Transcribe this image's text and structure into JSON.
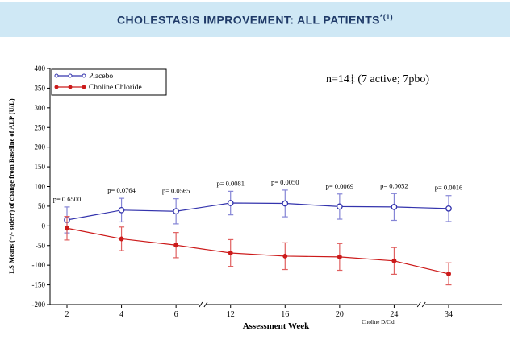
{
  "header": {
    "title": "CHOLESTASIS IMPROVEMENT: ALL PATIENTS",
    "superscript": "*(1)"
  },
  "chart_data": {
    "type": "line",
    "x_categories": [
      "2",
      "4",
      "6",
      "12",
      "16",
      "20",
      "24",
      "34"
    ],
    "series": [
      {
        "name": "Placebo",
        "color": "#3434ad",
        "error_color": "#8585d6",
        "marker": "open-circle",
        "values": [
          15,
          40,
          37,
          58,
          57,
          49,
          48,
          44
        ],
        "errors": [
          33,
          30,
          32,
          30,
          34,
          32,
          34,
          33
        ]
      },
      {
        "name": "Choline Chloride",
        "color": "#cc1a1a",
        "error_color": "#e06060",
        "marker": "filled-circle",
        "values": [
          -6,
          -33,
          -49,
          -69,
          -77,
          -79,
          -89,
          -122
        ],
        "errors": [
          30,
          30,
          32,
          34,
          34,
          34,
          34,
          28
        ]
      }
    ],
    "p_values": [
      "p= 0.6500",
      "p= 0.0764",
      "p= 0.0565",
      "p= 0.0081",
      "p= 0.0050",
      "p= 0.0069",
      "p= 0.0052",
      "p= 0.0016"
    ],
    "annotation": "n=14‡ (7 active; 7pbo)",
    "footnote": "Choline D/C'd",
    "xlabel": "Assessment Week",
    "ylabel": "LS Means (+/- stderr) of change from Baseline of ALP (U/L)",
    "ylim": [
      -200,
      400
    ],
    "ytick_step": 50,
    "axis_breaks_after_index": [
      2,
      6
    ],
    "legend_position": "top-left",
    "grid": false
  }
}
